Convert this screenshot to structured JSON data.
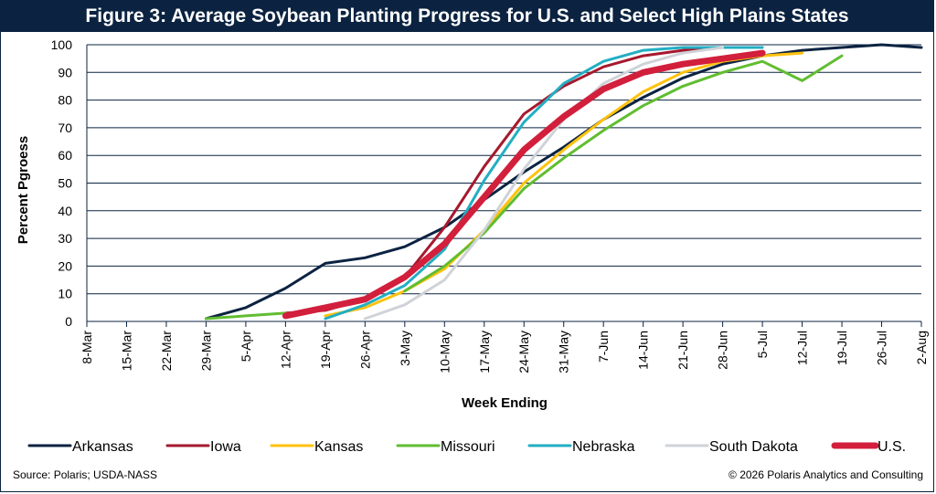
{
  "chart_data": {
    "type": "line",
    "title": "Figure 3: Average Soybean Planting Progress for U.S. and Select High Plains States",
    "xlabel": "Week Ending",
    "ylabel": "Percent Pgroess",
    "ylim": [
      0,
      100
    ],
    "yticks": [
      0,
      10,
      20,
      30,
      40,
      50,
      60,
      70,
      80,
      90,
      100
    ],
    "categories": [
      "8-Mar",
      "15-Mar",
      "22-Mar",
      "29-Mar",
      "5-Apr",
      "12-Apr",
      "19-Apr",
      "26-Apr",
      "3-May",
      "10-May",
      "17-May",
      "24-May",
      "31-May",
      "7-Jun",
      "14-Jun",
      "21-Jun",
      "28-Jun",
      "5-Jul",
      "12-Jul",
      "19-Jul",
      "26-Jul",
      "2-Aug"
    ],
    "grid": true,
    "legend_position": "bottom",
    "series": [
      {
        "name": "Arkansas",
        "color": "#0b2341",
        "width": 3,
        "values": [
          null,
          null,
          null,
          1,
          5,
          12,
          21,
          23,
          27,
          34,
          44,
          54,
          63,
          73,
          81,
          88,
          93,
          96,
          98,
          99,
          100,
          99
        ]
      },
      {
        "name": "Iowa",
        "color": "#a6192e",
        "width": 3,
        "values": [
          null,
          null,
          null,
          null,
          null,
          3,
          4,
          8,
          16,
          34,
          56,
          75,
          85,
          92,
          96,
          98,
          99,
          null,
          null,
          null,
          null,
          null
        ]
      },
      {
        "name": "Kansas",
        "color": "#ffc20e",
        "width": 3,
        "values": [
          null,
          null,
          null,
          null,
          null,
          null,
          2,
          5,
          11,
          19,
          33,
          50,
          62,
          73,
          83,
          90,
          94,
          96,
          97,
          null,
          null,
          null
        ]
      },
      {
        "name": "Missouri",
        "color": "#61bd31",
        "width": 3,
        "values": [
          null,
          null,
          null,
          1,
          2,
          3,
          null,
          null,
          11,
          20,
          32,
          48,
          59,
          69,
          78,
          85,
          90,
          94,
          87,
          96,
          null,
          null
        ]
      },
      {
        "name": "Nebraska",
        "color": "#23aec3",
        "width": 3,
        "values": [
          null,
          null,
          null,
          null,
          null,
          null,
          1,
          6,
          13,
          26,
          51,
          72,
          86,
          94,
          98,
          99,
          99,
          99,
          null,
          null,
          null,
          null
        ]
      },
      {
        "name": "South Dakota",
        "color": "#cfd3d8",
        "width": 3,
        "values": [
          null,
          null,
          null,
          null,
          null,
          null,
          null,
          1,
          6,
          15,
          33,
          55,
          73,
          86,
          93,
          97,
          99,
          null,
          null,
          null,
          null,
          null
        ]
      },
      {
        "name": "U.S.",
        "color": "#d21f3c",
        "width": 7,
        "values": [
          null,
          null,
          null,
          null,
          null,
          2,
          5,
          8,
          16,
          28,
          45,
          62,
          74,
          84,
          90,
          93,
          95,
          97,
          null,
          null,
          null,
          null
        ]
      }
    ]
  },
  "footer": {
    "source": "Source: Polaris; USDA-NASS",
    "copyright": "© 2026 Polaris Analytics and Consulting"
  }
}
